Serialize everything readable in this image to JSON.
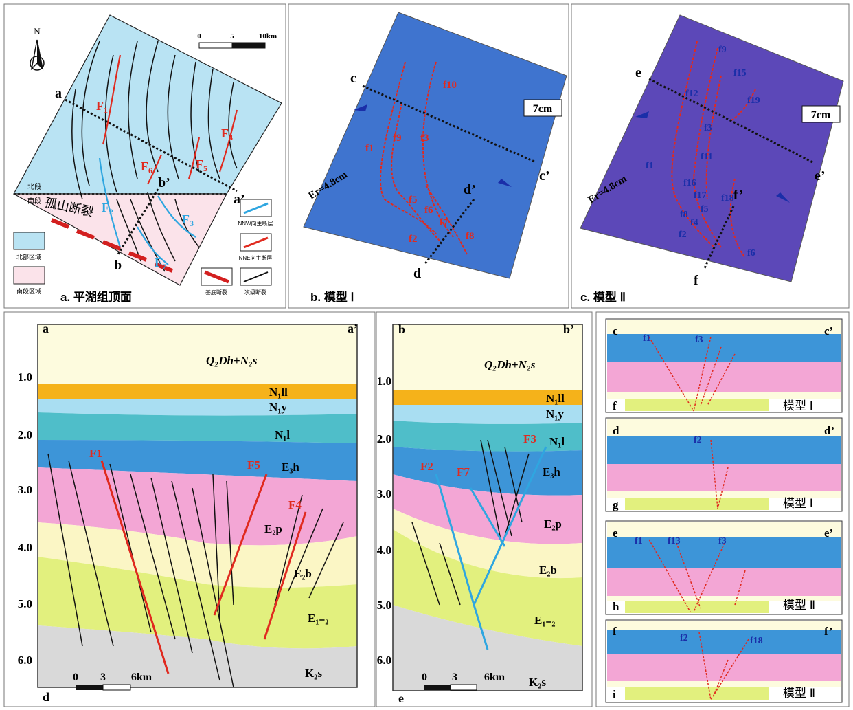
{
  "top_panels": {
    "a": {
      "caption": "a. 平湖组顶面",
      "north": "N",
      "scale": {
        "zero": "0",
        "mid": "5",
        "end": "10km"
      },
      "section_start": "a",
      "section_end": "a’",
      "section2_start": "b",
      "section2_end": "b’",
      "north_segment": "北段",
      "south_segment": "南段",
      "fault_name": "孤山断裂",
      "faults": {
        "F1": "F",
        "F1s": "1",
        "F2": "F",
        "F2s": "2",
        "F3": "F",
        "F3s": "3",
        "F4": "F",
        "F4s": "4",
        "F5": "F",
        "F5s": "5",
        "F6": "F",
        "F6s": "6",
        "F7": "F",
        "F7s": "7"
      },
      "legend": {
        "north_area": "北部区域",
        "south_area": "南段区域",
        "nnw": "NNW向主断层",
        "nne": "NNE向主断层",
        "basement": "基底断裂",
        "secondary": "次级断裂"
      },
      "colors": {
        "north": "#b9e3f3",
        "south": "#fbe3ea"
      }
    },
    "b": {
      "caption": "b. 模型 Ⅰ",
      "scale_label": "7cm",
      "er": "Er=4.8cm",
      "c": "c",
      "c2": "c’",
      "d": "d",
      "d2": "d’",
      "faults": [
        "f1",
        "f9",
        "f3",
        "f10",
        "f5",
        "f6",
        "f7",
        "f8",
        "f2"
      ]
    },
    "c": {
      "caption": "c. 模型 Ⅱ",
      "scale_label": "7cm",
      "er": "Er=4.8cm",
      "e": "e",
      "e2": "e’",
      "f": "f",
      "f2": "f’",
      "faults": [
        "f9",
        "f15",
        "f12",
        "f19",
        "f3",
        "f11",
        "f1",
        "f16",
        "f17",
        "f18",
        "f5",
        "f8",
        "f4",
        "f2",
        "f6"
      ]
    }
  },
  "sections": {
    "d": {
      "left": "a",
      "right": "a’",
      "corner": "d",
      "ticks": [
        "1.0",
        "2.0",
        "3.0",
        "4.0",
        "5.0",
        "6.0"
      ],
      "layers": {
        "q": "Q₂Dh+N₂s",
        "n1ll": "N₁ll",
        "n1y": "N₁y",
        "n1l": "N₁l",
        "e3h": "E₃h",
        "e2p": "E₂p",
        "e2b": "E₂b",
        "e12": "E₁₋₂",
        "k2s": "K₂s"
      },
      "faults": {
        "F1": "F1",
        "F5": "F5",
        "F4": "F4"
      },
      "scale": {
        "zero": "0",
        "mid": "3",
        "end": "6km"
      }
    },
    "e": {
      "left": "b",
      "right": "b’",
      "corner": "e",
      "ticks": [
        "1.0",
        "2.0",
        "3.0",
        "4.0",
        "5.0",
        "6.0"
      ],
      "layers": {
        "q": "Q₂Dh+N₂s",
        "n1ll": "N₁ll",
        "n1y": "N₁y",
        "n1l": "N₁l",
        "e3h": "E₃h",
        "e2p": "E₂p",
        "e2b": "E₂b",
        "e12": "E₁₋₂",
        "k2s": "K₂s"
      },
      "faults": {
        "F2": "F2",
        "F7": "F7",
        "F3": "F3"
      },
      "scale": {
        "zero": "0",
        "mid": "3",
        "end": "6km"
      }
    }
  },
  "model_sections": [
    {
      "tl": "c",
      "tr": "c’",
      "bl": "f",
      "model": "模型 Ⅰ",
      "labels": [
        "f1",
        "f3"
      ]
    },
    {
      "tl": "d",
      "tr": "d’",
      "bl": "g",
      "model": "模型 Ⅰ",
      "labels": [
        "f2"
      ]
    },
    {
      "tl": "e",
      "tr": "e’",
      "bl": "h",
      "model": "模型 Ⅱ",
      "labels": [
        "f1",
        "f13",
        "f3"
      ]
    },
    {
      "tl": "f",
      "tr": "f’",
      "bl": "i",
      "model": "模型 Ⅱ",
      "labels": [
        "f2",
        "f18"
      ]
    }
  ],
  "layer_colors": {
    "q": "#fdfbde",
    "n1ll": "#f5b21a",
    "n1y": "#a9def2",
    "n1l": "#4fbec9",
    "e3h": "#3d95d8",
    "e2p": "#f3a6d5",
    "e2b": "#fbf6c5",
    "e12": "#e2f07e",
    "k2s": "#d9d9d9"
  }
}
